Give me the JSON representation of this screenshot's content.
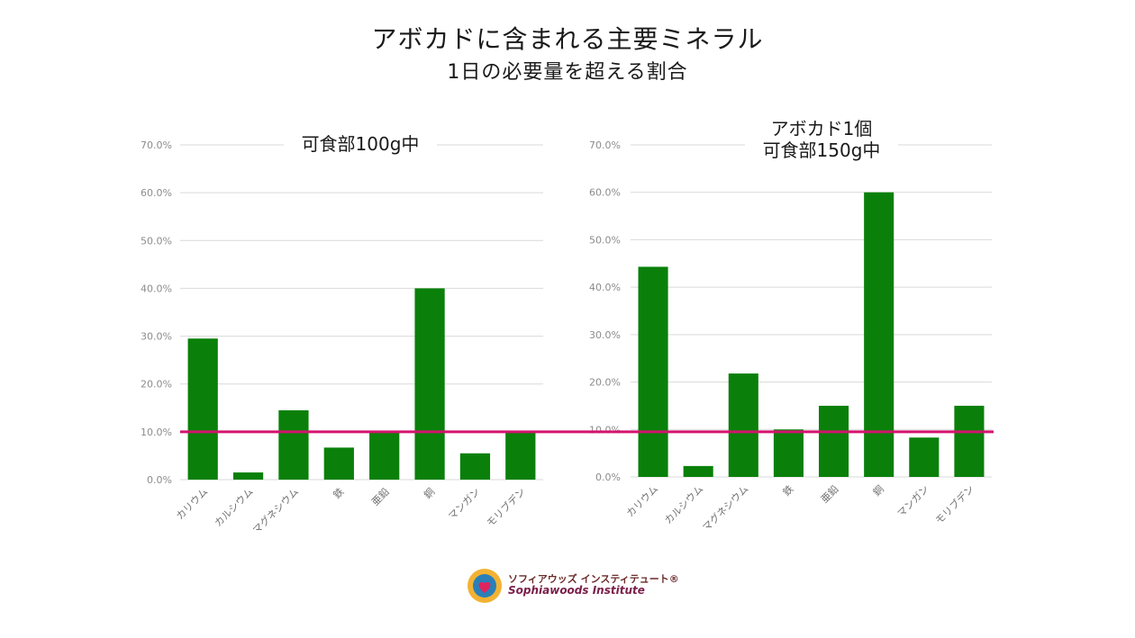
{
  "title": "アボカドに含まれる主要ミネラル",
  "subtitle": "1日の必要量を超える割合",
  "colors": {
    "bar": "#0a800a",
    "threshold": "#d4136e",
    "grid": "#d9d9d9",
    "tick": "#8c8c8c"
  },
  "logo": {
    "jp": "ソフィアウッズ インスティテュート®",
    "en": "Sophiawoods Institute",
    "icon": "sun-heart-icon"
  },
  "chart_data": [
    {
      "type": "bar",
      "title": "可食部100g中",
      "categories": [
        "カリウム",
        "カルシウム",
        "マグネシウム",
        "鉄",
        "亜鉛",
        "銅",
        "マンガン",
        "モリブデン"
      ],
      "values": [
        29.5,
        1.5,
        14.5,
        6.7,
        10.0,
        40.0,
        5.5,
        10.0
      ],
      "ylim": [
        0,
        70
      ],
      "yticks": [
        "0.0%",
        "10.0%",
        "20.0%",
        "30.0%",
        "40.0%",
        "50.0%",
        "60.0%",
        "70.0%"
      ],
      "threshold": 10,
      "grid": true
    },
    {
      "type": "bar",
      "title": "アボカド1個\n可食部150g中",
      "categories": [
        "カリウム",
        "カルシウム",
        "マグネシウム",
        "鉄",
        "亜鉛",
        "銅",
        "マンガン",
        "モリブデン"
      ],
      "values": [
        44.3,
        2.3,
        21.8,
        10.0,
        15.0,
        60.0,
        8.3,
        15.0
      ],
      "ylim": [
        0,
        70
      ],
      "yticks": [
        "0.0%",
        "10.0%",
        "20.0%",
        "30.0%",
        "40.0%",
        "50.0%",
        "60.0%",
        "70.0%"
      ],
      "threshold": 10,
      "grid": true
    }
  ]
}
